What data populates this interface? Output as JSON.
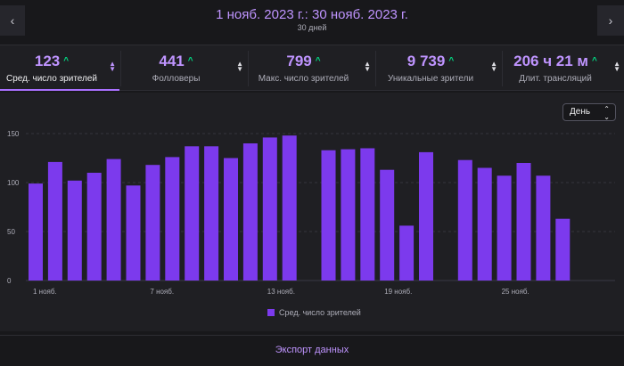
{
  "header": {
    "date_range": "1 нояб. 2023 г.: 30 нояб. 2023 г.",
    "days": "30 дней",
    "prev_icon": "chevron-left-icon",
    "next_icon": "chevron-right-icon"
  },
  "stats": [
    {
      "value": "123",
      "label": "Сред. число зрителей",
      "trend": "up",
      "active": true
    },
    {
      "value": "441",
      "label": "Фолловеры",
      "trend": "up",
      "active": false
    },
    {
      "value": "799",
      "label": "Макс. число зрителей",
      "trend": "up",
      "active": false
    },
    {
      "value": "9 739",
      "label": "Уникальные зрители",
      "trend": "up",
      "active": false
    },
    {
      "value": "206 ч 21 м",
      "label": "Длит. трансляций",
      "trend": "up",
      "active": false
    }
  ],
  "granularity": {
    "selected": "День"
  },
  "colors": {
    "accent": "#a970ff",
    "bar": "#7c3aed",
    "trend_up": "#00db84"
  },
  "chart_data": {
    "type": "bar",
    "x": [
      1,
      2,
      3,
      4,
      5,
      6,
      7,
      8,
      9,
      10,
      11,
      12,
      13,
      14,
      15,
      16,
      17,
      18,
      19,
      20,
      21,
      22,
      23,
      24,
      25,
      26,
      27,
      28,
      29,
      30
    ],
    "values": [
      99,
      121,
      102,
      110,
      124,
      97,
      118,
      126,
      137,
      137,
      125,
      140,
      146,
      148,
      null,
      133,
      134,
      135,
      113,
      56,
      131,
      null,
      123,
      115,
      107,
      120,
      107,
      63,
      null,
      null
    ],
    "x_tick_labels": [
      {
        "x": 1,
        "label": "1 нояб."
      },
      {
        "x": 7,
        "label": "7 нояб."
      },
      {
        "x": 13,
        "label": "13 нояб."
      },
      {
        "x": 19,
        "label": "19 нояб."
      },
      {
        "x": 25,
        "label": "25 нояб."
      }
    ],
    "y_ticks": [
      0,
      50,
      100,
      150
    ],
    "ylim": [
      0,
      150
    ],
    "series_name": "Сред. число зрителей",
    "grid": true,
    "legend_position": "bottom-center"
  },
  "footer": {
    "export_label": "Экспорт данных"
  }
}
